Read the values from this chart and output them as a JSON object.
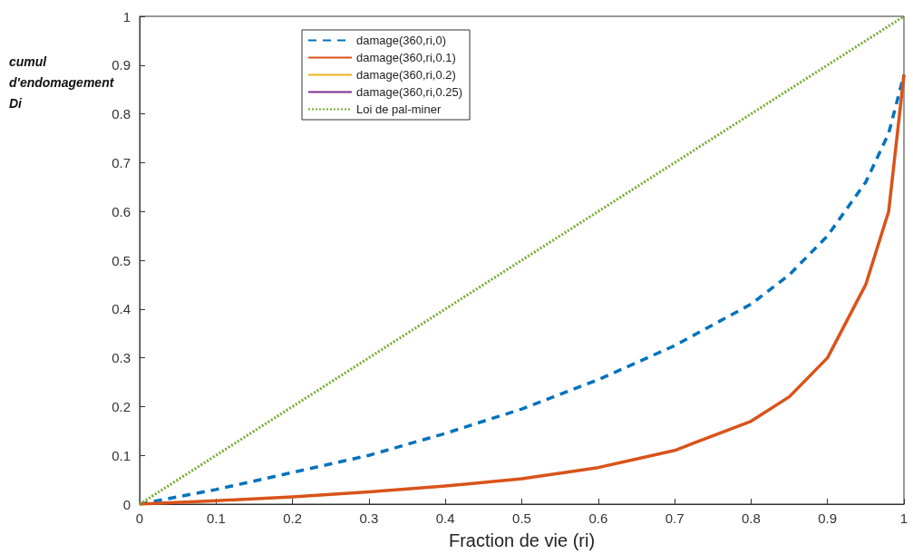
{
  "chart_data": {
    "type": "line",
    "xlabel": "Fraction de vie (ri)",
    "ylabel": "cumul\nd'endomagement\nDi",
    "xlim": [
      0,
      1
    ],
    "xticks": [
      0,
      0.1,
      0.2,
      0.3,
      0.4,
      0.5,
      0.6,
      0.7,
      0.8,
      0.9,
      1
    ],
    "ylim": [
      0,
      1
    ],
    "yticks": [
      0,
      0.1,
      0.2,
      0.3,
      0.4,
      0.5,
      0.6,
      0.7,
      0.8,
      0.9,
      1
    ],
    "grid": false,
    "legend": "top left",
    "marker": "none",
    "series": [
      {
        "name": "damage(360,ri,0)",
        "color": "#0072bd",
        "line_style": "dashed",
        "x": [
          0,
          0.1,
          0.2,
          0.3,
          0.4,
          0.5,
          0.6,
          0.7,
          0.8,
          0.85,
          0.9,
          0.95,
          0.98,
          1
        ],
        "values": [
          0,
          0.03,
          0.065,
          0.1,
          0.145,
          0.195,
          0.255,
          0.325,
          0.41,
          0.47,
          0.55,
          0.66,
          0.76,
          0.88
        ]
      },
      {
        "name": "damage(360,ri,0.1)",
        "color": "#d95319",
        "line_style": "solid",
        "x": [
          0,
          0.1,
          0.2,
          0.3,
          0.4,
          0.5,
          0.6,
          0.7,
          0.8,
          0.85,
          0.9,
          0.95,
          0.98,
          1
        ],
        "values": [
          0,
          0.007,
          0.015,
          0.025,
          0.037,
          0.052,
          0.075,
          0.11,
          0.17,
          0.22,
          0.3,
          0.45,
          0.6,
          0.88
        ]
      },
      {
        "name": "damage(360,ri,0.2)",
        "color": "#edb120",
        "line_style": "solid"
      },
      {
        "name": "damage(360,ri,0.25)",
        "color": "#7e2f8e",
        "line_style": "solid"
      },
      {
        "name": "Loi de pal-miner",
        "color": "#77ac30",
        "line_style": "dotted",
        "x": [
          0,
          1
        ],
        "values": [
          0,
          1
        ]
      }
    ]
  }
}
